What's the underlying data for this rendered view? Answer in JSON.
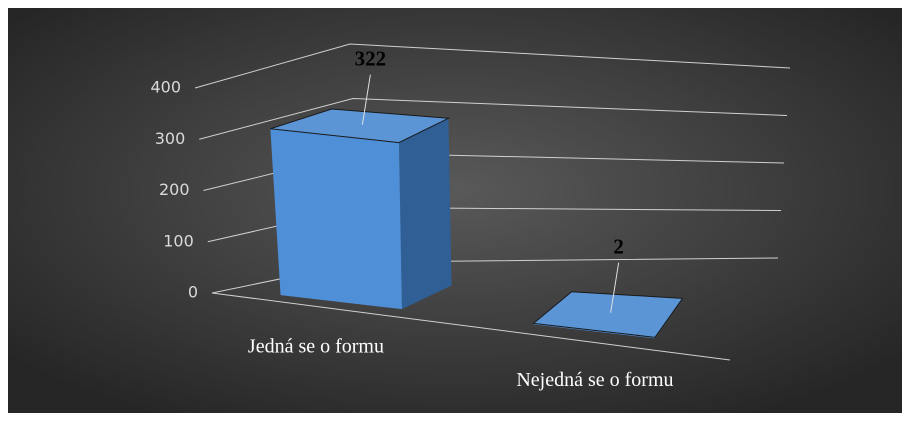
{
  "chart_data": {
    "type": "bar3d",
    "categories": [
      "Jedná se o formu",
      "Nejedná se o formu"
    ],
    "values": [
      322,
      2
    ],
    "color": "#4f8fd8",
    "ylim": [
      0,
      400
    ],
    "yticks": [
      0,
      100,
      200,
      300,
      400
    ],
    "grid": true
  }
}
